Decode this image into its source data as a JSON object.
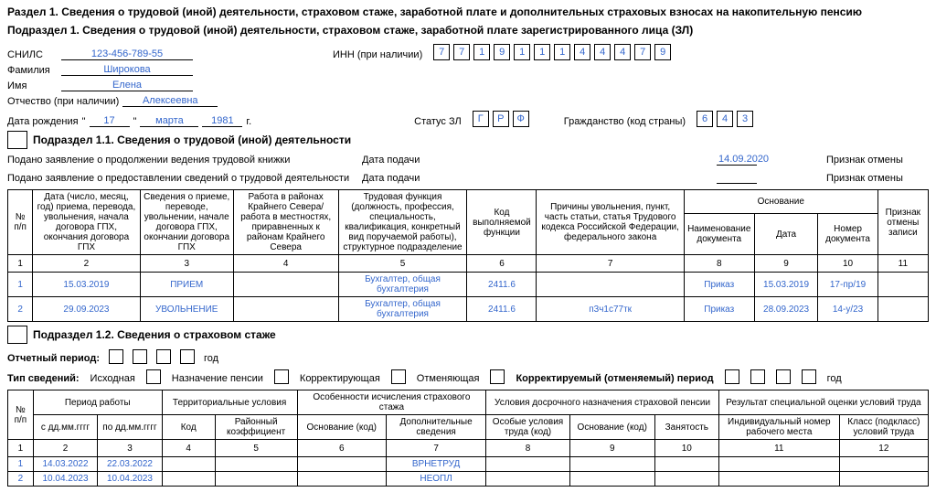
{
  "section_title": "Раздел 1. Сведения о трудовой (иной) деятельности, страховом стаже, заработной плате и дополнительных страховых взносах на накопительную пенсию",
  "sub1_title": "Подраздел 1. Сведения о трудовой (иной) деятельности, страховом стаже, заработной плате зарегистрированного лица (ЗЛ)",
  "labels": {
    "snils": "СНИЛС",
    "inn": "ИНН (при наличии)",
    "fam": "Фамилия",
    "imya": "Имя",
    "otch": "Отчество (при наличии)",
    "dob": "Дата рождения",
    "quote": "\"",
    "year_g": "г.",
    "status_zl": "Статус ЗЛ",
    "citizenship": "Гражданство (код страны)",
    "sub11": "Подраздел 1.1. Сведения о трудовой (иной) деятельности",
    "filing1": "Подано заявление о продолжении ведения трудовой книжки",
    "filing2": "Подано заявление о предоставлении сведений о трудовой деятельности",
    "date_filed": "Дата подачи",
    "cancel_mark": "Признак отмены",
    "sub12": "Подраздел 1.2. Сведения о страховом стаже",
    "report_period": "Отчетный период:",
    "year_word": "год",
    "info_type": "Тип сведений:",
    "initial": "Исходная",
    "pension": "Назначение пенсии",
    "correcting": "Корректирующая",
    "cancelling": "Отменяющая",
    "corr_period": "Корректируемый (отменяемый) период"
  },
  "person": {
    "snils": "123-456-789-55",
    "fam": "Широкова",
    "imya": "Елена",
    "otch": "Алексеевна",
    "dob_day": "17",
    "dob_month": "марта",
    "dob_year": "1981",
    "inn_chars": [
      "7",
      "7",
      "1",
      "9",
      "1",
      "1",
      "1",
      "4",
      "4",
      "4",
      "7",
      "9"
    ],
    "status_chars": [
      "Г",
      "Р",
      "Ф"
    ],
    "citizenship_chars": [
      "6",
      "4",
      "3"
    ],
    "filing1_date": "14.09.2020"
  },
  "table1": {
    "headers": {
      "np": "№ п/п",
      "date_full": "Дата (число, месяц, год) приема, перевода, увольнения, начала договора ГПХ, окончания договора ГПХ",
      "event_info": "Сведения о приеме, переводе, увольнении, начале договора ГПХ, окончании договора ГПХ",
      "north": "Работа в районах Крайнего Севера/работа в местностях, приравненных к районам Крайнего Севера",
      "func": "Трудовая функция (должность, профессия, специальность, квалификация, конкретный вид поручаемой работы), структурное подразделение",
      "code": "Код выполняемой функции",
      "reason": "Причины увольнения, пункт, часть статьи, статья Трудового кодекса Российской Федерации, федерального закона",
      "basis": "Основание",
      "doc_name": "Наименование документа",
      "doc_date": "Дата",
      "doc_num": "Номер документа",
      "cancel": "Признак отмены записи"
    },
    "nums": [
      "1",
      "2",
      "3",
      "4",
      "5",
      "6",
      "7",
      "8",
      "9",
      "10",
      "11"
    ],
    "rows": [
      {
        "n": "1",
        "date": "15.03.2019",
        "ev": "ПРИЕМ",
        "north": "",
        "func": "Бухгалтер, общая бухгалтерия",
        "code": "2411.6",
        "reason": "",
        "doc": "Приказ",
        "ddate": "15.03.2019",
        "dnum": "17-пр/19",
        "cancel": ""
      },
      {
        "n": "2",
        "date": "29.09.2023",
        "ev": "УВОЛЬНЕНИЕ",
        "north": "",
        "func": "Бухгалтер, общая бухгалтерия",
        "code": "2411.6",
        "reason": "п3ч1с77тк",
        "doc": "Приказ",
        "ddate": "28.09.2023",
        "dnum": "14-у/23",
        "cancel": ""
      }
    ]
  },
  "table2": {
    "headers": {
      "np": "№ п/п",
      "period": "Период работы",
      "from": "с дд.мм.гггг",
      "to": "по дд.мм.гггг",
      "terr": "Территориальные условия",
      "code": "Код",
      "coef": "Районный коэффициент",
      "feat": "Особенности исчисления страхового стажа",
      "basis_code": "Основание (код)",
      "addl": "Дополнительные сведения",
      "early": "Условия досрочного назначения страховой пенсии",
      "special": "Особые условия труда (код)",
      "bcode2": "Основание (код)",
      "employ": "Занятость",
      "sout": "Результат специальной оценки условий труда",
      "indiv": "Индивидуальный номер рабочего места",
      "class": "Класс (подкласс) условий труда"
    },
    "nums": [
      "1",
      "2",
      "3",
      "4",
      "5",
      "6",
      "7",
      "8",
      "9",
      "10",
      "11",
      "12"
    ],
    "rows": [
      {
        "n": "1",
        "from": "14.03.2022",
        "to": "22.03.2022",
        "addl": "ВРНЕТРУД"
      },
      {
        "n": "2",
        "from": "10.04.2023",
        "to": "10.04.2023",
        "addl": "НЕОПЛ"
      }
    ]
  }
}
